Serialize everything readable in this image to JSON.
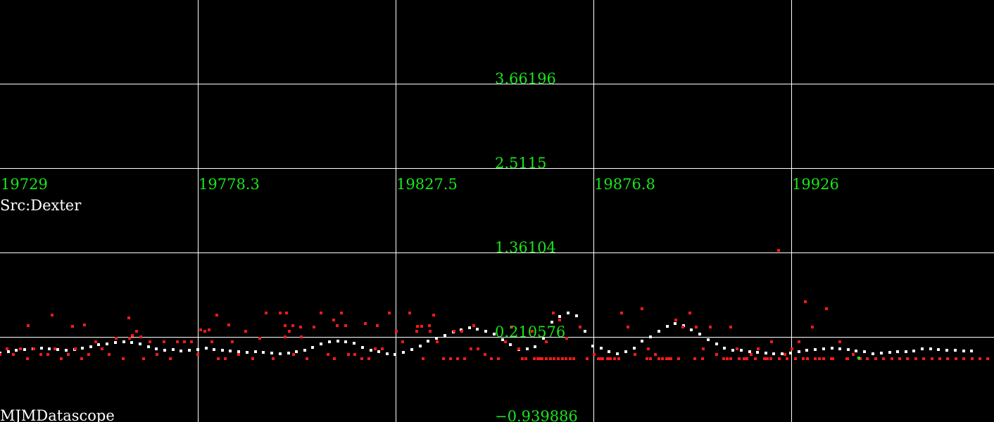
{
  "source_label": "Src:Dexter",
  "app_label": "MJMDatascope",
  "colors": {
    "background": "#000000",
    "grid": "#ffffff",
    "tick_text": "#19e619",
    "info_text": "#ffffff",
    "series_avg": "#ffffff",
    "series_raw": "#ff1a1a",
    "series_last": "#19e619"
  },
  "chart_data": {
    "type": "scatter",
    "title": "",
    "xlabel": "",
    "ylabel": "",
    "grid": true,
    "xlim": [
      19729,
      19976.5
    ],
    "ylim": [
      -0.939886,
      4.812385
    ],
    "x_ticks": [
      {
        "value": 19729,
        "label": "19729"
      },
      {
        "value": 19778.3,
        "label": "19778.3"
      },
      {
        "value": 19827.5,
        "label": "19827.5"
      },
      {
        "value": 19876.8,
        "label": "19876.8"
      },
      {
        "value": 19926,
        "label": "19926"
      }
    ],
    "y_ticks": [
      {
        "value": 3.66196,
        "label": "3.66196"
      },
      {
        "value": 2.5115,
        "label": "2.5115"
      },
      {
        "value": 1.36104,
        "label": "1.36104"
      },
      {
        "value": 0.210576,
        "label": "0.210576"
      },
      {
        "value": -0.939886,
        "label": "−0.939886"
      }
    ],
    "series": [
      {
        "color": "#ffffff",
        "x": [
          19729,
          19731.1,
          19733.1,
          19735.2,
          19737.2,
          19739.3,
          19741.3,
          19743.4,
          19745.4,
          19747.5,
          19749.5,
          19751.6,
          19753.6,
          19755.7,
          19757.7,
          19759.8,
          19761.8,
          19763.9,
          19765.9,
          19768,
          19770,
          19772.1,
          19774.1,
          19776.2,
          19778.2,
          19780.3,
          19782.3,
          19784.4,
          19786.4,
          19788.5,
          19790.5,
          19792.6,
          19794.6,
          19796.7,
          19798.7,
          19800.8,
          19802.8,
          19804.9,
          19806.9,
          19809,
          19811,
          19813.1,
          19815.1,
          19817.2,
          19819.2,
          19821.3,
          19823.3,
          19825.4,
          19827.4,
          19829.5,
          19831.5,
          19833.6,
          19835.6,
          19837.7,
          19839.7,
          19841.8,
          19843.8,
          19845.9,
          19847.9,
          19850,
          19852,
          19854.1,
          19856.1,
          19858.2,
          19860.2,
          19862.3,
          19864.3,
          19866.4,
          19868.4,
          19870.5,
          19872.5,
          19874.6,
          19876.6,
          19878.7,
          19880.7,
          19882.8,
          19884.8,
          19886.9,
          19888.9,
          19891,
          19893,
          19895.1,
          19897.1,
          19899.2,
          19901.2,
          19903.3,
          19905.3,
          19907.4,
          19909.4,
          19911.5,
          19913.5,
          19915.6,
          19917.6,
          19919.7,
          19921.7,
          19923.8,
          19925.8,
          19927.9,
          19929.9,
          19932,
          19934,
          19936.1,
          19938.1,
          19940.2,
          19942.2,
          19944.3
        ],
        "y": [
          -0.0,
          0.02,
          0.04,
          0.05,
          0.06,
          0.07,
          0.06,
          0.05,
          0.04,
          0.05,
          0.07,
          0.09,
          0.11,
          0.12,
          0.14,
          0.15,
          0.14,
          0.12,
          0.09,
          0.06,
          0.04,
          0.05,
          0.03,
          0.04,
          0.05,
          0.07,
          0.05,
          0.04,
          0.03,
          0.02,
          0.01,
          0.02,
          0.01,
          0.0,
          -0.01,
          -0.0,
          0.02,
          0.04,
          0.08,
          0.12,
          0.15,
          0.16,
          0.15,
          0.13,
          0.08,
          0.04,
          0.02,
          -0.01,
          -0.02,
          0.01,
          0.05,
          0.1,
          0.16,
          0.2,
          0.24,
          0.29,
          0.32,
          0.34,
          0.33,
          0.3,
          0.26,
          0.18,
          0.11,
          0.05,
          0.06,
          0.09,
          0.2,
          0.42,
          0.5,
          0.55,
          0.51,
          0.3,
          0.1,
          0.07,
          0.02,
          -0.01,
          0.02,
          0.07,
          0.16,
          0.22,
          0.3,
          0.36,
          0.4,
          0.37,
          0.32,
          0.26,
          0.18,
          0.12,
          0.07,
          0.04,
          0.04,
          0.02,
          0.01,
          -0.0,
          -0.01,
          -0.01,
          -0.0,
          0.02,
          0.04,
          0.05,
          0.06,
          0.07,
          0.06,
          0.05,
          0.03,
          0.02
        ]
      },
      {
        "color": "#ff1a1a",
        "x": [
          19729,
          19730.7,
          19732.4,
          19734.1,
          19735.8,
          19737.5,
          19739.2,
          19740.9,
          19742.6,
          19744.3,
          19746,
          19747.7,
          19749.4,
          19751.1,
          19752.8,
          19754.5,
          19756.2,
          19757.9,
          19759.6,
          19761.3,
          19763,
          19764.7,
          19766.4,
          19768.1,
          19769.8,
          19771.5,
          19773.2,
          19774.9,
          19776.6,
          19778.3,
          19780,
          19781.7,
          19783.4,
          19785.1,
          19786.8,
          19788.5,
          19790.2,
          19791.9,
          19793.6,
          19795.3,
          19797,
          19798.7,
          19800.4,
          19802.1,
          19803.8,
          19805.5,
          19807.2,
          19808.9,
          19810.6,
          19812.3,
          19814,
          19815.7,
          19817.4,
          19819.1,
          19820.8,
          19822.5,
          19824.2,
          19825.9,
          19827.6,
          19829.3,
          19831,
          19832.7,
          19834.4,
          19836.1,
          19837.8,
          19839.5,
          19841.2,
          19842.9,
          19844.6,
          19846.3,
          19848,
          19849.7,
          19851.4,
          19853.1,
          19854.8,
          19856.5,
          19858.2,
          19859.9,
          19861.6,
          19863.3,
          19865,
          19866.7,
          19868.4,
          19870.1,
          19871.8,
          19873.5,
          19875.2,
          19876.9,
          19878.6,
          19880.3,
          19882,
          19883.7,
          19885.4,
          19887.1,
          19888.8,
          19890.5,
          19892.2,
          19893.9,
          19895.6,
          19897.3,
          19899,
          19900.7,
          19902.4,
          19904.1,
          19905.8,
          19907.5,
          19909.2,
          19910.9,
          19912.6,
          19914.3,
          19916,
          19917.7,
          19919.4,
          19921.1,
          19922.8,
          19924.5,
          19926.2,
          19927.9,
          19929.6,
          19931.3,
          19933,
          19934.7,
          19936.4,
          19938.1,
          19939.8,
          19941.5,
          19943.2,
          19944.9
        ],
        "y": [
          -0.02,
          0.06,
          -0.02,
          0.06,
          -0.08,
          0.06,
          -0.02,
          -0.02,
          0.06,
          -0.08,
          -0.02,
          0.06,
          -0.08,
          -0.02,
          0.15,
          0.06,
          -0.02,
          0.2,
          -0.08,
          0.2,
          0.3,
          -0.08,
          0.15,
          -0.02,
          0.15,
          -0.08,
          0.15,
          0.15,
          0.15,
          -0.02,
          0.3,
          0.15,
          -0.08,
          -0.08,
          0.15,
          -0.02,
          0.3,
          -0.08,
          0.2,
          0.55,
          -0.08,
          0.55,
          0.55,
          -0.02,
          0.35,
          -0.08,
          0.35,
          0.55,
          -0.02,
          -0.08,
          0.55,
          -0.02,
          -0.02,
          -0.08,
          -0.08,
          0.06,
          0.06,
          0.55,
          0.3,
          0.15,
          0.55,
          0.3,
          -0.08,
          0.3,
          0.15,
          -0.08,
          -0.08,
          -0.08,
          -0.08,
          0.06,
          0.06,
          -0.02,
          -0.08,
          -0.08,
          0.15,
          0.35,
          0.06,
          -0.08,
          0.3,
          -0.08,
          0.15,
          0.55,
          0.45,
          0.2,
          -0.08,
          0.35,
          -0.08,
          -0.02,
          -0.08,
          -0.08,
          -0.08,
          0.55,
          0.35,
          -0.02,
          0.6,
          0.06,
          -0.02,
          -0.08,
          -0.08,
          0.45,
          0.35,
          0.55,
          0.35,
          0.06,
          0.35,
          -0.02,
          -0.08,
          0.35,
          0.06,
          -0.08,
          -0.02,
          0.06,
          -0.08,
          0.15,
          1.4,
          -0.02,
          0.06,
          0.15,
          0.7,
          0.35,
          -0.08,
          0.6,
          -0.08,
          0.15,
          -0.08,
          -0.02,
          -0.08,
          -0.08
        ]
      },
      {
        "color": "#ff1a1a",
        "x": [
          19736,
          19742,
          19747,
          19750,
          19761,
          19762,
          19764,
          19763,
          19779,
          19781,
          19783,
          19786,
          19800,
          19802,
          19804,
          19800,
          19801,
          19812,
          19813,
          19815,
          19820,
          19823,
          19833,
          19834,
          19836,
          19837,
          19842,
          19844,
          19847,
          19859,
          19860,
          19862,
          19863,
          19864,
          19865,
          19866,
          19867,
          19868,
          19869,
          19870,
          19871,
          19878,
          19879,
          19881,
          19883,
          19890,
          19891,
          19893,
          19894,
          19895,
          19896,
          19898,
          19902,
          19904,
          19910,
          19911,
          19913,
          19915,
          19917,
          19920,
          19921,
          19923,
          19925,
          19927,
          19929,
          19930,
          19932,
          19934,
          19936,
          19940,
          19943,
          19945,
          19947,
          19949,
          19951,
          19953,
          19955,
          19957,
          19959,
          19961,
          19963,
          19965,
          19967,
          19969,
          19971,
          19973,
          19975
        ],
        "y": [
          0.37,
          0.52,
          0.36,
          0.38,
          0.48,
          0.24,
          0.22,
          0.3,
          0.32,
          0.32,
          0.52,
          0.38,
          0.37,
          0.37,
          0.22,
          0.22,
          0.3,
          0.45,
          0.37,
          0.37,
          0.4,
          0.37,
          0.36,
          0.36,
          0.37,
          0.52,
          0.3,
          0.3,
          0.37,
          -0.08,
          -0.08,
          -0.08,
          -0.08,
          -0.08,
          -0.08,
          -0.08,
          -0.08,
          -0.08,
          -0.08,
          -0.08,
          -0.08,
          -0.08,
          -0.08,
          -0.08,
          -0.08,
          -0.08,
          -0.08,
          -0.08,
          -0.08,
          -0.08,
          -0.08,
          -0.08,
          -0.08,
          -0.08,
          -0.08,
          -0.08,
          -0.08,
          -0.08,
          -0.08,
          -0.08,
          -0.08,
          -0.08,
          -0.08,
          -0.08,
          -0.08,
          -0.08,
          -0.08,
          -0.08,
          -0.08,
          -0.08,
          -0.08,
          -0.08,
          -0.08,
          -0.08,
          -0.08,
          -0.08,
          -0.08,
          -0.08,
          -0.08,
          -0.08,
          -0.08,
          -0.08,
          -0.08,
          -0.08,
          -0.08,
          -0.08,
          -0.08
        ]
      },
      {
        "color": "#ffffff",
        "x": [
          19946.4,
          19948.4,
          19950.5,
          19952.5,
          19954.6,
          19956.6,
          19958.7,
          19960.7,
          19962.7,
          19964.8,
          19966.8,
          19968.9,
          19970.9
        ],
        "y": [
          -0.01,
          0.0,
          0.01,
          0.02,
          0.02,
          0.03,
          0.06,
          0.06,
          0.05,
          0.04,
          0.04,
          0.03,
          0.03
        ]
      },
      {
        "color": "#19e619",
        "x": [
          19942.9
        ],
        "y": [
          -0.07
        ]
      }
    ]
  }
}
